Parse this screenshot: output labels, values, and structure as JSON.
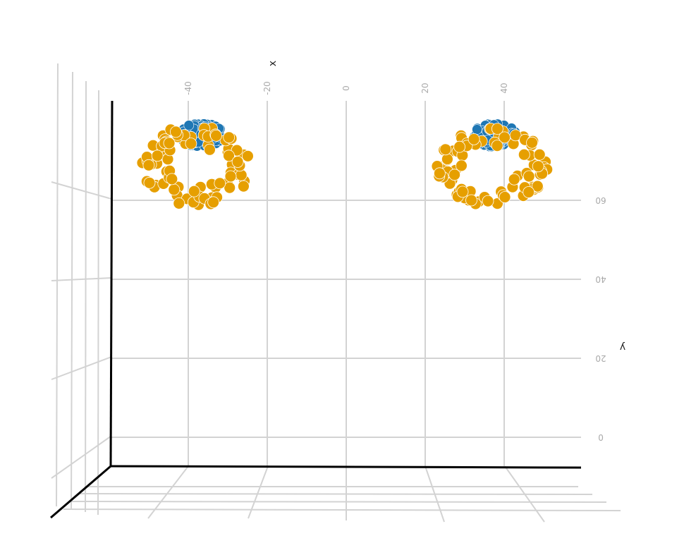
{
  "chart_data": {
    "type": "scatter",
    "projection": "3d",
    "title": "",
    "axes": {
      "x": {
        "label": "x",
        "ticks": [
          -40,
          -20,
          0,
          20,
          40
        ],
        "tick_labels": [
          "-40",
          "-20",
          "0",
          "20",
          "40"
        ],
        "range": [
          -60,
          60
        ]
      },
      "y": {
        "label": "y",
        "ticks": [
          0,
          20,
          40,
          60
        ],
        "tick_labels": [
          "0",
          "20",
          "40",
          "60"
        ],
        "range": [
          -8,
          86
        ]
      },
      "z": {
        "label": "",
        "tick_labels": [
          "",
          "",
          "",
          ""
        ]
      }
    },
    "grid": true,
    "legend": "none",
    "colors": {
      "blue": "#1f77b4",
      "orange": "#e69f00",
      "grid": "#d3d3d3",
      "axis": "#000000"
    },
    "series": [
      {
        "color": "#1f77b4",
        "clusters": [
          {
            "center_x": -36.5,
            "center_y": 76.5,
            "spread_x": 5.5,
            "spread_y": 3.2,
            "count": 90
          },
          {
            "center_x": 37.5,
            "center_y": 76.5,
            "spread_x": 5.5,
            "spread_y": 3.0,
            "count": 90
          }
        ]
      },
      {
        "color": "#e69f00",
        "shape": "ring",
        "clusters": [
          {
            "center_x": -38,
            "center_y": 68.5,
            "rx": 14.0,
            "ry": 10.0,
            "count": 85
          },
          {
            "center_x": 37,
            "center_y": 68.5,
            "rx": 14.0,
            "ry": 10.0,
            "count": 85
          }
        ]
      }
    ]
  }
}
